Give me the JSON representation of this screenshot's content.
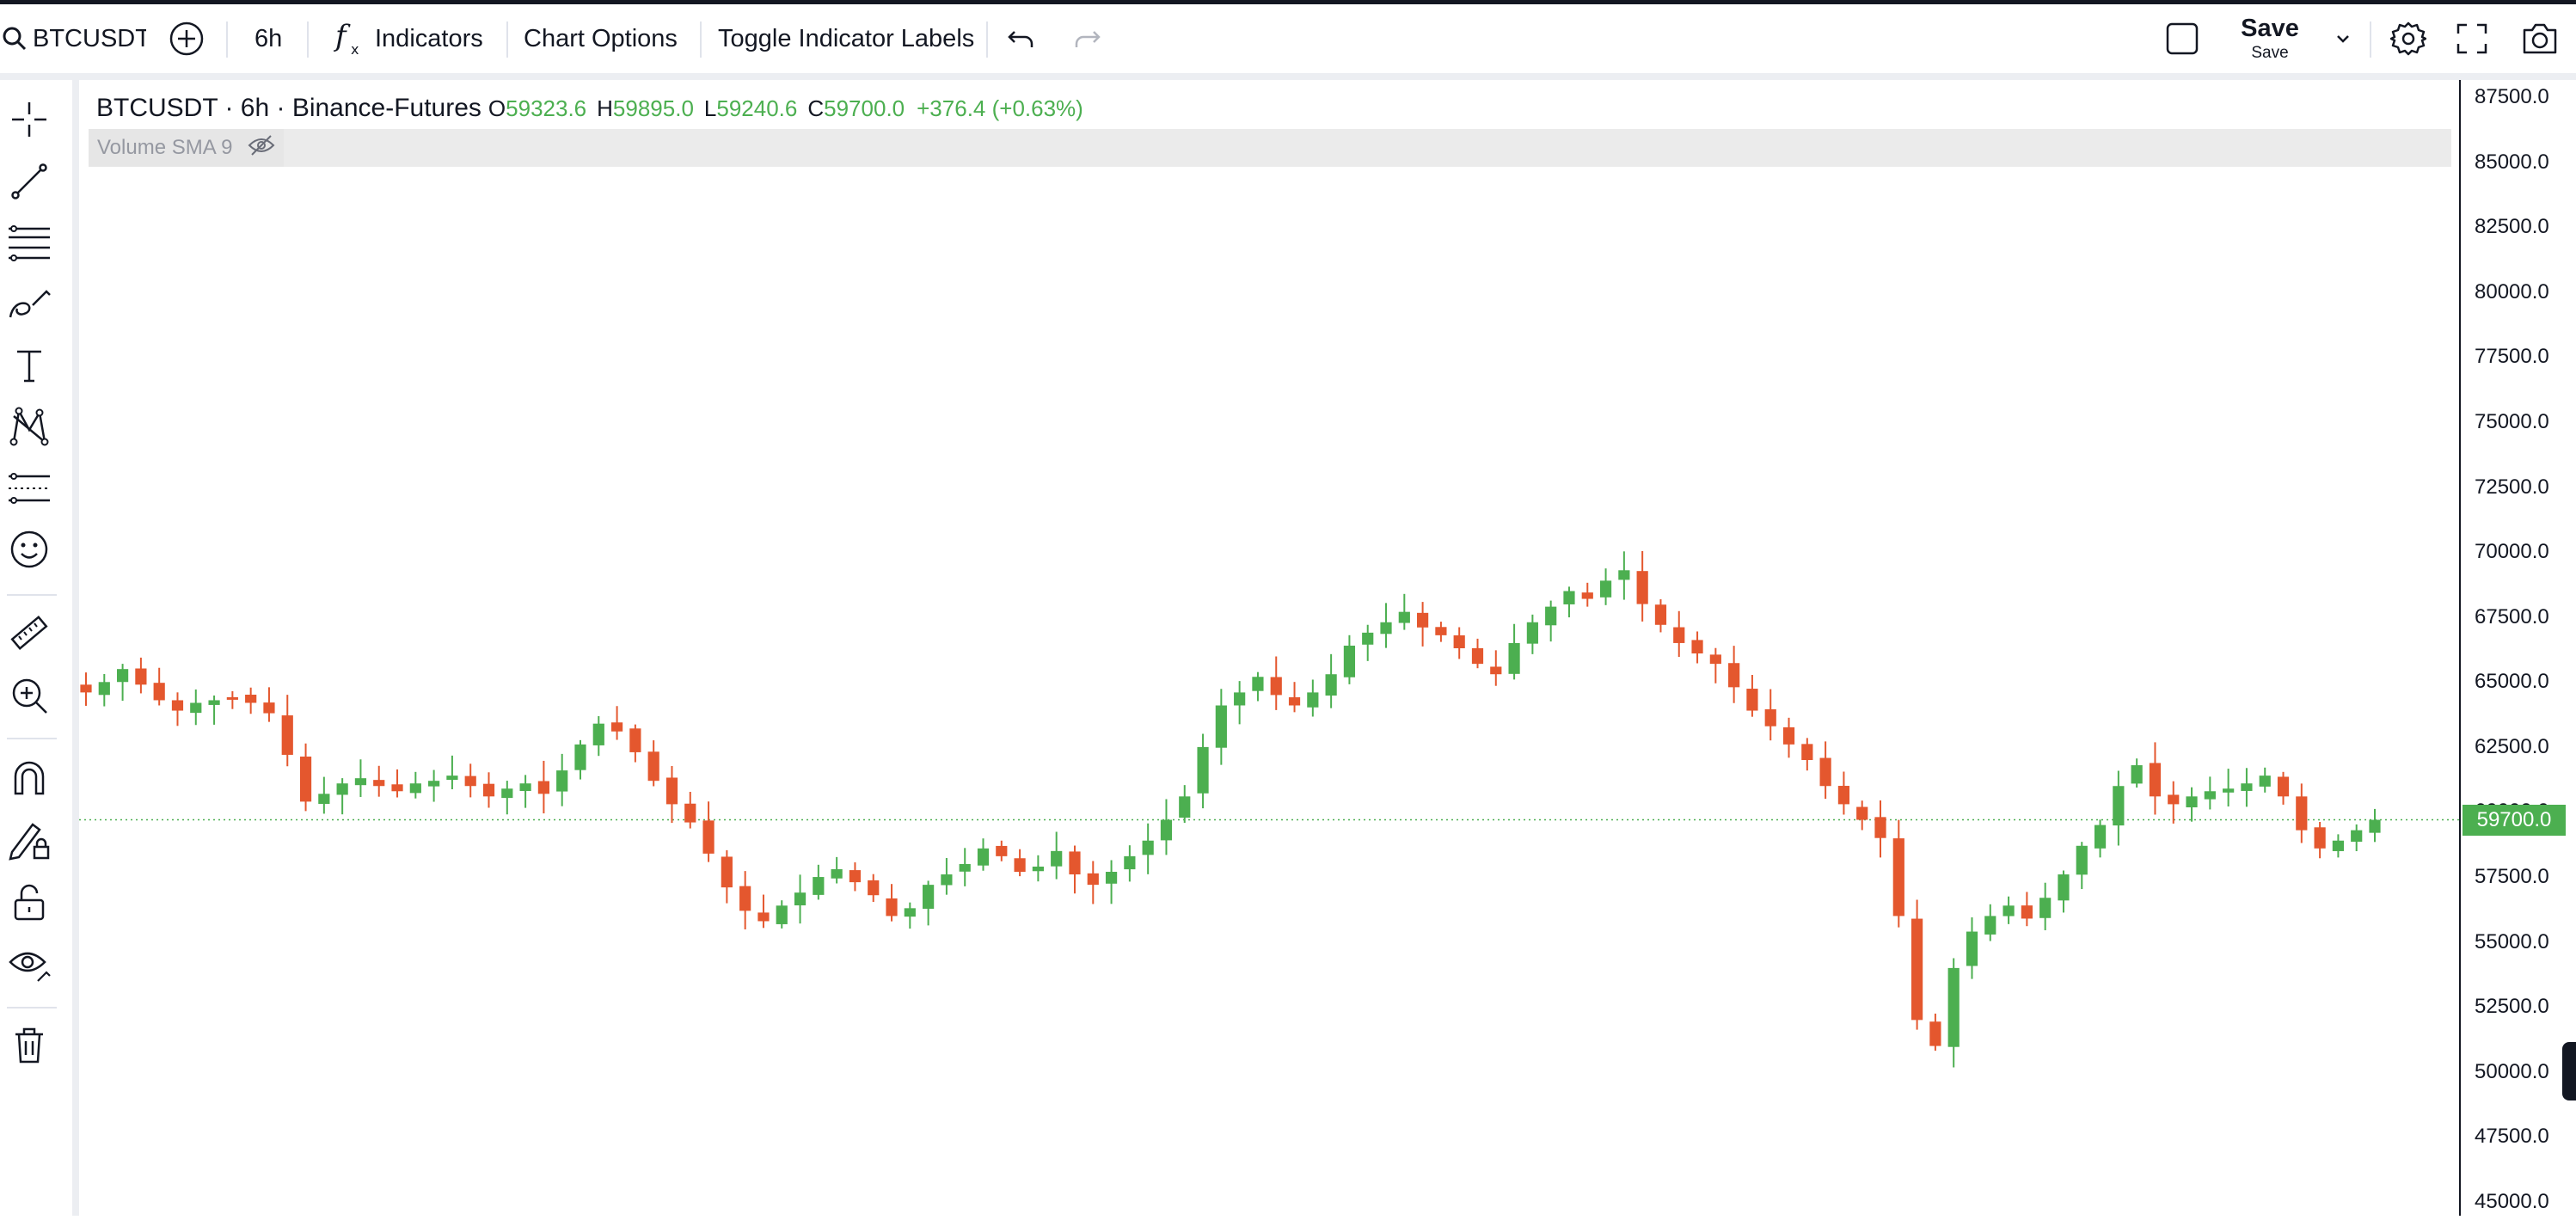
{
  "toolbar": {
    "symbol": "BTCUSDT",
    "interval": "6h",
    "indicators_label": "Indicators",
    "chart_options_label": "Chart Options",
    "toggle_labels_label": "Toggle Indicator Labels",
    "save_label": "Save",
    "save_sublabel": "Save"
  },
  "icons": {
    "search": "search-icon",
    "compare": "plus-circle-icon",
    "indicators": "function-icon",
    "undo": "undo-icon",
    "redo": "redo-icon",
    "layout": "square-icon",
    "chevron": "chevron-down-icon",
    "settings": "gear-icon",
    "fullscreen": "fullscreen-icon",
    "screenshot": "camera-icon"
  },
  "left_tools": [
    "crosshair-icon",
    "trend-line-icon",
    "fib-lines-icon",
    "brush-icon",
    "text-icon",
    "pattern-icon",
    "prediction-icon",
    "emoji-icon",
    "ruler-icon",
    "zoom-in-icon",
    "magnet-icon",
    "lock-drawing-icon",
    "unlock-icon",
    "eye-icon",
    "trash-icon"
  ],
  "legend": {
    "title": "BTCUSDT · 6h · Binance-Futures",
    "o_label": "O",
    "o_value": "59323.6",
    "h_label": "H",
    "h_value": "59895.0",
    "l_label": "L",
    "l_value": "59240.6",
    "c_label": "C",
    "c_value": "59700.0",
    "change": "+376.4 (+0.63%)"
  },
  "indicator": {
    "label": "Volume SMA 9"
  },
  "colors": {
    "up": "#4caf50",
    "down": "#e4572e",
    "accent": "#4caf50"
  },
  "chart_data": {
    "type": "candlestick",
    "symbol": "BTCUSDT",
    "interval": "6h",
    "exchange": "Binance-Futures",
    "ylim": [
      45000,
      87500
    ],
    "y_ticks": [
      "87500.0",
      "85000.0",
      "82500.0",
      "80000.0",
      "77500.0",
      "75000.0",
      "72500.0",
      "70000.0",
      "67500.0",
      "65000.0",
      "62500.0",
      "60000.0",
      "57500.0",
      "55000.0",
      "52500.0",
      "50000.0",
      "47500.0",
      "45000.0"
    ],
    "last_price": "59700.0",
    "last_value": 59700,
    "close_trend": [
      64600,
      65000,
      65500,
      64900,
      64300,
      63900,
      64200,
      64300,
      64400,
      64200,
      63800,
      62200,
      60400,
      60700,
      61100,
      61300,
      61000,
      60800,
      61100,
      61200,
      61400,
      61000,
      60600,
      60900,
      61100,
      60700,
      61600,
      62600,
      63400,
      63100,
      62300,
      61200,
      60300,
      59600,
      58400,
      57100,
      56200,
      55800,
      56400,
      56900,
      57500,
      57800,
      57300,
      56800,
      56000,
      56300,
      57200,
      57600,
      58000,
      58600,
      58300,
      57700,
      57900,
      58500,
      57600,
      57200,
      57700,
      58300,
      58900,
      59700,
      60600,
      62500,
      64100,
      64600,
      65200,
      64500,
      64100,
      64600,
      65300,
      66400,
      66900,
      67300,
      67700,
      67100,
      66800,
      66300,
      65700,
      65300,
      66500,
      67300,
      67900,
      68500,
      68200,
      68900,
      69300,
      68000,
      67200,
      66500,
      66100,
      65700,
      64800,
      63900,
      63300,
      62600,
      62000,
      61000,
      60300,
      59700,
      59000,
      56000,
      52000,
      51000,
      54000,
      55400,
      56000,
      56400,
      55900,
      56700,
      57600,
      58700,
      59500,
      61000,
      61800,
      60600,
      60300,
      60600,
      60800,
      60900,
      61100,
      61400,
      60600,
      59300,
      58600,
      58900,
      59300,
      59700
    ]
  }
}
